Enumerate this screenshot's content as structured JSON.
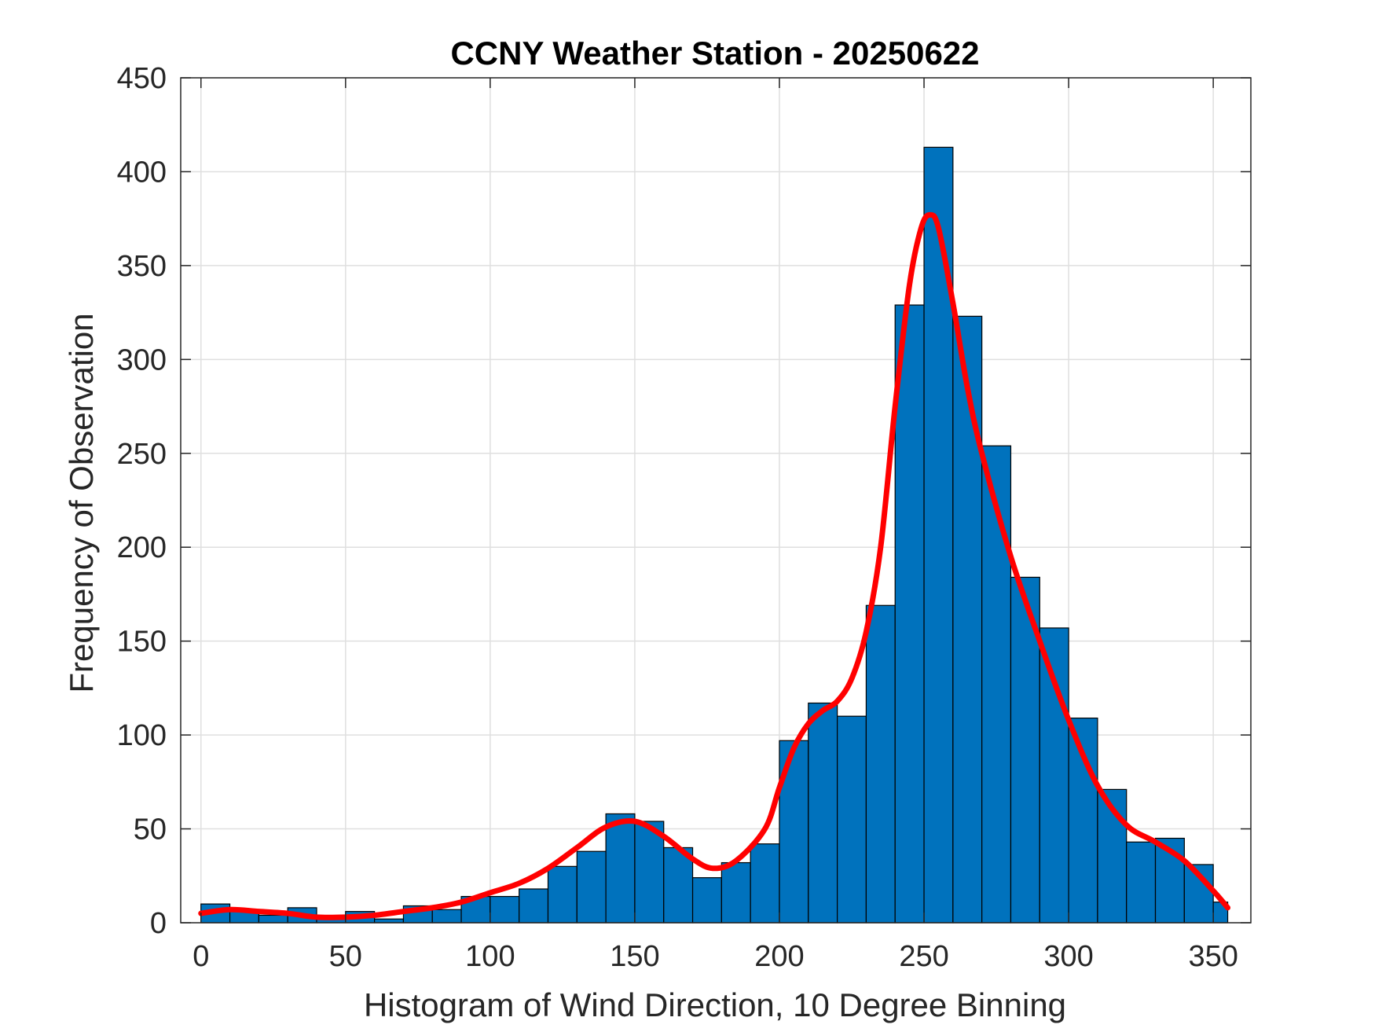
{
  "chart_data": {
    "type": "bar",
    "title": "CCNY Weather Station - 20250622",
    "xlabel": "Histogram of Wind Direction, 10 Degree Binning",
    "ylabel": "Frequency of Observation",
    "xlim": [
      -7,
      363
    ],
    "ylim": [
      0,
      450
    ],
    "xticks": [
      0,
      50,
      100,
      150,
      200,
      250,
      300,
      350
    ],
    "yticks": [
      0,
      50,
      100,
      150,
      200,
      250,
      300,
      350,
      400,
      450
    ],
    "grid": true,
    "bin_width": 10,
    "bin_edges": [
      0,
      10,
      20,
      30,
      40,
      50,
      60,
      70,
      80,
      90,
      100,
      110,
      120,
      130,
      140,
      150,
      160,
      170,
      180,
      190,
      200,
      210,
      220,
      230,
      240,
      250,
      260,
      270,
      280,
      290,
      300,
      310,
      320,
      330,
      340,
      350,
      355
    ],
    "values": [
      10,
      6,
      4,
      8,
      3,
      6,
      2,
      9,
      7,
      14,
      14,
      18,
      30,
      38,
      58,
      54,
      40,
      24,
      32,
      42,
      97,
      117,
      110,
      169,
      329,
      413,
      323,
      254,
      184,
      157,
      109,
      71,
      43,
      45,
      31,
      11
    ],
    "bar_color": "#0072BD",
    "fit_line": {
      "color": "#FF0000",
      "x": [
        0,
        10,
        20,
        30,
        40,
        50,
        60,
        70,
        80,
        90,
        100,
        110,
        120,
        130,
        140,
        150,
        160,
        170,
        177,
        185,
        195,
        200,
        205,
        210,
        215,
        220,
        225,
        230,
        235,
        240,
        245,
        249,
        252,
        255,
        260,
        265,
        270,
        280,
        290,
        300,
        310,
        320,
        330,
        340,
        350,
        355
      ],
      "y": [
        5,
        7,
        6,
        5,
        3,
        3,
        4,
        6,
        8,
        11,
        16,
        21,
        29,
        40,
        51,
        54,
        46,
        34,
        29,
        33,
        50,
        72,
        93,
        106,
        113,
        118,
        130,
        155,
        200,
        275,
        340,
        370,
        377,
        370,
        330,
        285,
        250,
        195,
        150,
        108,
        73,
        52,
        43,
        33,
        17,
        8
      ]
    }
  }
}
